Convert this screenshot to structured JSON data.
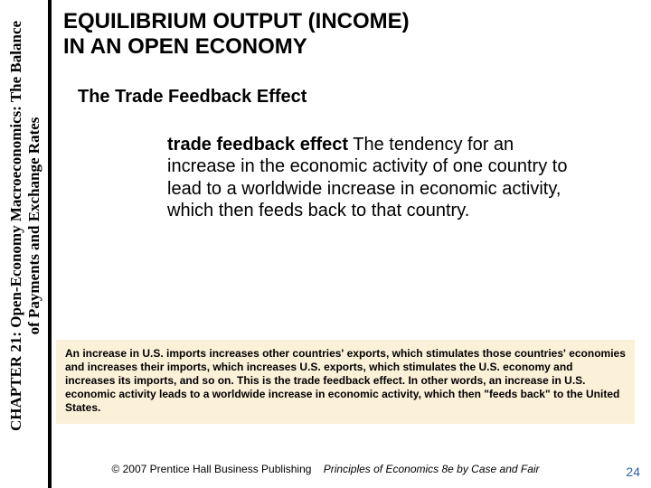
{
  "sidebar": {
    "line1": "CHAPTER 21: Open-Economy Macroeconomics: The Balance",
    "line2": "of Payments and Exchange Rates"
  },
  "title": {
    "line1": "EQUILIBRIUM OUTPUT (INCOME)",
    "line2": "IN AN OPEN ECONOMY"
  },
  "subtitle": "The Trade Feedback Effect",
  "definition": {
    "term": "trade feedback effect",
    "text": "  The tendency for an increase in the economic activity of one country to lead to a worldwide increase in economic activity, which then feeds back to that country."
  },
  "highlight": "An increase in U.S. imports increases other countries' exports, which stimulates those countries' economies and increases their imports, which increases U.S. exports, which stimulates the U.S. economy and increases its imports, and so on.  This is the trade feedback effect.  In other words, an increase in U.S. economic activity leads to a worldwide increase in economic activity, which then \"feeds back\" to the United States.",
  "footer": {
    "copyright": "© 2007 Prentice Hall Business Publishing",
    "book": "Principles of Economics 8e by Case and Fair"
  },
  "page_number": "24",
  "colors": {
    "highlight_bg": "#fbf0d8",
    "page_num": "#2a5fb5",
    "bar": "#000000"
  }
}
